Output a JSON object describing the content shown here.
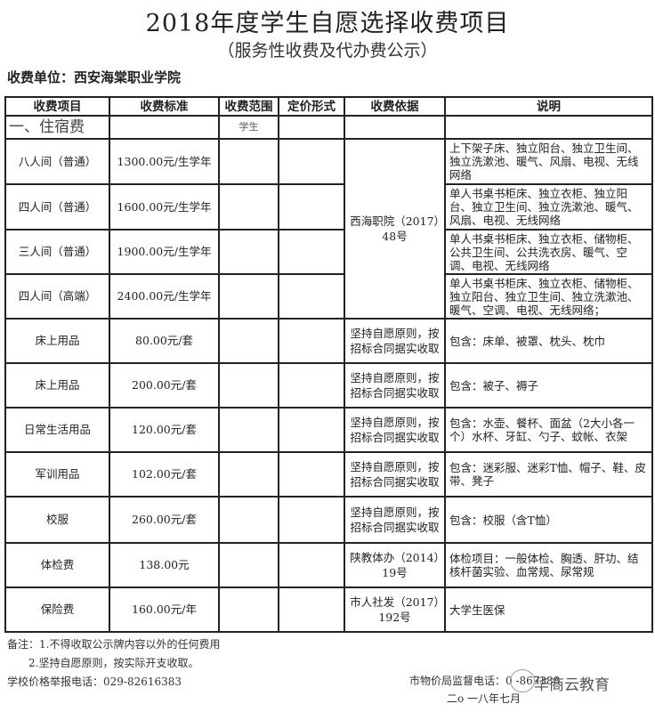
{
  "title": "2018年度学生自愿选择收费项目",
  "subtitle": "（服务性收费及代办费公示）",
  "unit": "收费单位：西安海棠职业学院",
  "headers": [
    "收费项目",
    "收费标准",
    "收费范围",
    "定价形式",
    "收费依据",
    "说明"
  ],
  "section": {
    "label": "一、住宿费",
    "scope": "学生"
  },
  "dorm_basis": "西海职院（2017）48号",
  "dorm_rows": [
    {
      "item": "八人间（普通）",
      "price": "1300.00元/生学年",
      "desc": "上下架子床、独立阳台、独立卫生间、独立洗漱池、暖气、风扇、电视、无线网络"
    },
    {
      "item": "四人间（普通）",
      "price": "1600.00元/生学年",
      "desc": "单人书桌书柜床、独立衣柜、独立阳台、独立卫生间、独立洗漱池、暖气、风扇、电视、无线网络"
    },
    {
      "item": "三人间（普通）",
      "price": "1900.00元/生学年",
      "desc": "单人书桌书柜床、独立衣柜、储物柜、公共卫生间、公共洗衣房、暖气、空调、电视、无线网络"
    },
    {
      "item": "四人间（高端）",
      "price": "2400.00元/生学年",
      "desc": "单人书桌书柜床、独立衣柜、储物柜、独立阳台、独立卫生间、独立洗漱池、暖气、空调、电视、无线网络；"
    }
  ],
  "rows": [
    {
      "item": "床上用品",
      "price": "80.00元/套",
      "basis": "坚持自愿原则，按招标合同据实收取",
      "desc": "包含：床单、被罩、枕头、枕巾"
    },
    {
      "item": "床上用品",
      "price": "200.00元/套",
      "basis": "坚持自愿原则，按招标合同据实收取",
      "desc": "包含：被子、褥子"
    },
    {
      "item": "日常生活用品",
      "price": "120.00元/套",
      "basis": "坚持自愿原则，按招标合同据实收取",
      "desc": "包含：水壶、餐杯、面盆（2大小各一个）水杯、牙缸、勺子、蚊帐、衣架"
    },
    {
      "item": "军训用品",
      "price": "102.00元/套",
      "basis": "坚持自愿原则，按招标合同据实收取",
      "desc": "包含：迷彩服、迷彩T恤、帽子、鞋、皮带、凳子"
    },
    {
      "item": "校服",
      "price": "260.00元/套",
      "basis": "坚持自愿原则，按招标合同据实收取",
      "desc": "包含：校服（含T恤）"
    },
    {
      "item": "体检费",
      "price": "138.00元",
      "basis": "陕教体办（2014）19号",
      "desc": "体检项目：一般体检、胸透、肝功、结核杆菌实验、血常规、尿常规"
    },
    {
      "item": "保险费",
      "price": "160.00元/年",
      "basis": "市人社发（2017）192号",
      "desc": "大学生医保"
    }
  ],
  "notes": [
    "备注：1.不得收取公示牌内容以外的任何费用",
    "2.坚持自愿原则，按实际开支收取。"
  ],
  "school_phone": "学校价格举报电话：029-82616383",
  "bureau_phone": "市物价局监督电话：0  -867388",
  "date": "二o 一八年七月",
  "watermark": "华商云教育"
}
